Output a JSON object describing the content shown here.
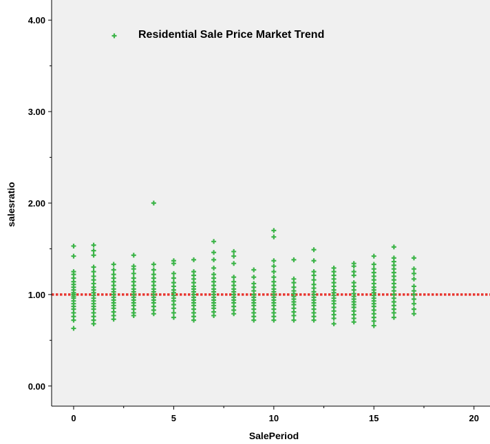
{
  "chart_data": {
    "type": "scatter",
    "title": "",
    "xlabel": "SalePeriod",
    "ylabel": "salesratio",
    "xlim": [
      -1.1,
      20.8
    ],
    "ylim": [
      -0.22,
      4.22
    ],
    "xticks": [
      0,
      5,
      10,
      15,
      20
    ],
    "xtick_labels": [
      "0",
      "5",
      "10",
      "15",
      "20"
    ],
    "yticks": [
      0,
      1,
      2,
      3,
      4
    ],
    "ytick_labels": [
      "0.00",
      "1.00",
      "2.00",
      "3.00",
      "4.00"
    ],
    "grid": false,
    "legend_position": "top-left inside plot",
    "series": [
      {
        "name": "Residential Sale Price Market Trend",
        "color": "#3cb448",
        "marker": "plus",
        "points": [
          [
            0,
            0.63
          ],
          [
            0,
            0.72
          ],
          [
            0,
            0.76
          ],
          [
            0,
            0.8
          ],
          [
            0,
            0.84
          ],
          [
            0,
            0.87
          ],
          [
            0,
            0.9
          ],
          [
            0,
            0.93
          ],
          [
            0,
            0.96
          ],
          [
            0,
            0.98
          ],
          [
            0,
            1.0
          ],
          [
            0,
            1.02
          ],
          [
            0,
            1.05
          ],
          [
            0,
            1.08
          ],
          [
            0,
            1.11
          ],
          [
            0,
            1.14
          ],
          [
            0,
            1.18
          ],
          [
            0,
            1.22
          ],
          [
            0,
            1.25
          ],
          [
            0,
            1.42
          ],
          [
            0,
            1.53
          ],
          [
            1,
            0.68
          ],
          [
            1,
            0.72
          ],
          [
            1,
            0.76
          ],
          [
            1,
            0.8
          ],
          [
            1,
            0.84
          ],
          [
            1,
            0.87
          ],
          [
            1,
            0.9
          ],
          [
            1,
            0.93
          ],
          [
            1,
            0.96
          ],
          [
            1,
            0.99
          ],
          [
            1,
            1.02
          ],
          [
            1,
            1.05
          ],
          [
            1,
            1.08
          ],
          [
            1,
            1.12
          ],
          [
            1,
            1.16
          ],
          [
            1,
            1.2
          ],
          [
            1,
            1.25
          ],
          [
            1,
            1.3
          ],
          [
            1,
            1.43
          ],
          [
            1,
            1.48
          ],
          [
            1,
            1.54
          ],
          [
            2,
            0.73
          ],
          [
            2,
            0.77
          ],
          [
            2,
            0.81
          ],
          [
            2,
            0.85
          ],
          [
            2,
            0.88
          ],
          [
            2,
            0.91
          ],
          [
            2,
            0.94
          ],
          [
            2,
            0.97
          ],
          [
            2,
            1.0
          ],
          [
            2,
            1.03
          ],
          [
            2,
            1.06
          ],
          [
            2,
            1.1
          ],
          [
            2,
            1.14
          ],
          [
            2,
            1.18
          ],
          [
            2,
            1.22
          ],
          [
            2,
            1.27
          ],
          [
            2,
            1.33
          ],
          [
            3,
            0.77
          ],
          [
            3,
            0.8
          ],
          [
            3,
            0.84
          ],
          [
            3,
            0.88
          ],
          [
            3,
            0.91
          ],
          [
            3,
            0.94
          ],
          [
            3,
            0.97
          ],
          [
            3,
            1.0
          ],
          [
            3,
            1.03
          ],
          [
            3,
            1.06
          ],
          [
            3,
            1.1
          ],
          [
            3,
            1.14
          ],
          [
            3,
            1.18
          ],
          [
            3,
            1.23
          ],
          [
            3,
            1.28
          ],
          [
            3,
            1.31
          ],
          [
            3,
            1.43
          ],
          [
            4,
            0.79
          ],
          [
            4,
            0.83
          ],
          [
            4,
            0.87
          ],
          [
            4,
            0.91
          ],
          [
            4,
            0.94
          ],
          [
            4,
            0.97
          ],
          [
            4,
            1.0
          ],
          [
            4,
            1.03
          ],
          [
            4,
            1.06
          ],
          [
            4,
            1.1
          ],
          [
            4,
            1.14
          ],
          [
            4,
            1.18
          ],
          [
            4,
            1.22
          ],
          [
            4,
            1.27
          ],
          [
            4,
            1.33
          ],
          [
            4,
            2.0
          ],
          [
            5,
            0.75
          ],
          [
            5,
            0.8
          ],
          [
            5,
            0.85
          ],
          [
            5,
            0.89
          ],
          [
            5,
            0.93
          ],
          [
            5,
            0.96
          ],
          [
            5,
            0.99
          ],
          [
            5,
            1.02
          ],
          [
            5,
            1.05
          ],
          [
            5,
            1.09
          ],
          [
            5,
            1.13
          ],
          [
            5,
            1.18
          ],
          [
            5,
            1.23
          ],
          [
            5,
            1.34
          ],
          [
            5,
            1.37
          ],
          [
            6,
            0.72
          ],
          [
            6,
            0.76
          ],
          [
            6,
            0.8
          ],
          [
            6,
            0.84
          ],
          [
            6,
            0.88
          ],
          [
            6,
            0.91
          ],
          [
            6,
            0.94
          ],
          [
            6,
            0.97
          ],
          [
            6,
            1.0
          ],
          [
            6,
            1.03
          ],
          [
            6,
            1.06
          ],
          [
            6,
            1.09
          ],
          [
            6,
            1.13
          ],
          [
            6,
            1.17
          ],
          [
            6,
            1.21
          ],
          [
            6,
            1.25
          ],
          [
            6,
            1.38
          ],
          [
            7,
            0.77
          ],
          [
            7,
            0.81
          ],
          [
            7,
            0.85
          ],
          [
            7,
            0.88
          ],
          [
            7,
            0.91
          ],
          [
            7,
            0.94
          ],
          [
            7,
            0.97
          ],
          [
            7,
            1.0
          ],
          [
            7,
            1.03
          ],
          [
            7,
            1.06
          ],
          [
            7,
            1.1
          ],
          [
            7,
            1.14
          ],
          [
            7,
            1.18
          ],
          [
            7,
            1.22
          ],
          [
            7,
            1.29
          ],
          [
            7,
            1.38
          ],
          [
            7,
            1.46
          ],
          [
            7,
            1.58
          ],
          [
            8,
            0.79
          ],
          [
            8,
            0.83
          ],
          [
            8,
            0.87
          ],
          [
            8,
            0.91
          ],
          [
            8,
            0.94
          ],
          [
            8,
            0.97
          ],
          [
            8,
            1.0
          ],
          [
            8,
            1.03
          ],
          [
            8,
            1.06
          ],
          [
            8,
            1.1
          ],
          [
            8,
            1.14
          ],
          [
            8,
            1.19
          ],
          [
            8,
            1.34
          ],
          [
            8,
            1.42
          ],
          [
            8,
            1.47
          ],
          [
            9,
            0.72
          ],
          [
            9,
            0.76
          ],
          [
            9,
            0.8
          ],
          [
            9,
            0.84
          ],
          [
            9,
            0.88
          ],
          [
            9,
            0.91
          ],
          [
            9,
            0.94
          ],
          [
            9,
            0.97
          ],
          [
            9,
            1.0
          ],
          [
            9,
            1.04
          ],
          [
            9,
            1.08
          ],
          [
            9,
            1.12
          ],
          [
            9,
            1.19
          ],
          [
            9,
            1.27
          ],
          [
            10,
            0.72
          ],
          [
            10,
            0.76
          ],
          [
            10,
            0.8
          ],
          [
            10,
            0.84
          ],
          [
            10,
            0.88
          ],
          [
            10,
            0.91
          ],
          [
            10,
            0.94
          ],
          [
            10,
            0.97
          ],
          [
            10,
            1.0
          ],
          [
            10,
            1.03
          ],
          [
            10,
            1.06
          ],
          [
            10,
            1.1
          ],
          [
            10,
            1.14
          ],
          [
            10,
            1.19
          ],
          [
            10,
            1.25
          ],
          [
            10,
            1.31
          ],
          [
            10,
            1.37
          ],
          [
            10,
            1.63
          ],
          [
            10,
            1.7
          ],
          [
            11,
            0.72
          ],
          [
            11,
            0.77
          ],
          [
            11,
            0.81
          ],
          [
            11,
            0.85
          ],
          [
            11,
            0.89
          ],
          [
            11,
            0.92
          ],
          [
            11,
            0.95
          ],
          [
            11,
            0.98
          ],
          [
            11,
            1.01
          ],
          [
            11,
            1.04
          ],
          [
            11,
            1.08
          ],
          [
            11,
            1.13
          ],
          [
            11,
            1.17
          ],
          [
            11,
            1.38
          ],
          [
            12,
            0.72
          ],
          [
            12,
            0.76
          ],
          [
            12,
            0.8
          ],
          [
            12,
            0.84
          ],
          [
            12,
            0.88
          ],
          [
            12,
            0.91
          ],
          [
            12,
            0.94
          ],
          [
            12,
            0.97
          ],
          [
            12,
            1.0
          ],
          [
            12,
            1.03
          ],
          [
            12,
            1.07
          ],
          [
            12,
            1.11
          ],
          [
            12,
            1.16
          ],
          [
            12,
            1.21
          ],
          [
            12,
            1.25
          ],
          [
            12,
            1.37
          ],
          [
            12,
            1.49
          ],
          [
            13,
            0.68
          ],
          [
            13,
            0.74
          ],
          [
            13,
            0.78
          ],
          [
            13,
            0.82
          ],
          [
            13,
            0.86
          ],
          [
            13,
            0.9
          ],
          [
            13,
            0.93
          ],
          [
            13,
            0.96
          ],
          [
            13,
            0.99
          ],
          [
            13,
            1.02
          ],
          [
            13,
            1.05
          ],
          [
            13,
            1.09
          ],
          [
            13,
            1.13
          ],
          [
            13,
            1.17
          ],
          [
            13,
            1.21
          ],
          [
            13,
            1.25
          ],
          [
            13,
            1.29
          ],
          [
            14,
            0.7
          ],
          [
            14,
            0.74
          ],
          [
            14,
            0.78
          ],
          [
            14,
            0.82
          ],
          [
            14,
            0.86
          ],
          [
            14,
            0.89
          ],
          [
            14,
            0.92
          ],
          [
            14,
            0.95
          ],
          [
            14,
            0.98
          ],
          [
            14,
            1.01
          ],
          [
            14,
            1.05
          ],
          [
            14,
            1.09
          ],
          [
            14,
            1.13
          ],
          [
            14,
            1.21
          ],
          [
            14,
            1.25
          ],
          [
            14,
            1.31
          ],
          [
            14,
            1.34
          ],
          [
            15,
            0.66
          ],
          [
            15,
            0.71
          ],
          [
            15,
            0.75
          ],
          [
            15,
            0.79
          ],
          [
            15,
            0.83
          ],
          [
            15,
            0.87
          ],
          [
            15,
            0.9
          ],
          [
            15,
            0.93
          ],
          [
            15,
            0.96
          ],
          [
            15,
            0.99
          ],
          [
            15,
            1.02
          ],
          [
            15,
            1.05
          ],
          [
            15,
            1.08
          ],
          [
            15,
            1.12
          ],
          [
            15,
            1.16
          ],
          [
            15,
            1.2
          ],
          [
            15,
            1.24
          ],
          [
            15,
            1.28
          ],
          [
            15,
            1.33
          ],
          [
            15,
            1.42
          ],
          [
            16,
            0.75
          ],
          [
            16,
            0.8
          ],
          [
            16,
            0.84
          ],
          [
            16,
            0.88
          ],
          [
            16,
            0.92
          ],
          [
            16,
            0.96
          ],
          [
            16,
            1.0
          ],
          [
            16,
            1.04
          ],
          [
            16,
            1.08
          ],
          [
            16,
            1.12
          ],
          [
            16,
            1.16
          ],
          [
            16,
            1.2
          ],
          [
            16,
            1.24
          ],
          [
            16,
            1.28
          ],
          [
            16,
            1.32
          ],
          [
            16,
            1.36
          ],
          [
            16,
            1.4
          ],
          [
            16,
            1.52
          ],
          [
            17,
            0.79
          ],
          [
            17,
            0.84
          ],
          [
            17,
            0.9
          ],
          [
            17,
            0.95
          ],
          [
            17,
            1.0
          ],
          [
            17,
            1.04
          ],
          [
            17,
            1.09
          ],
          [
            17,
            1.17
          ],
          [
            17,
            1.23
          ],
          [
            17,
            1.28
          ],
          [
            17,
            1.4
          ]
        ]
      }
    ],
    "reference_line": {
      "axis": "y",
      "value": 1.0,
      "color": "#e8352f",
      "style": "dotted"
    },
    "colors": {
      "plot_background": "#f0f0f0",
      "page_background": "#ffffff",
      "axis": "#000000"
    }
  }
}
